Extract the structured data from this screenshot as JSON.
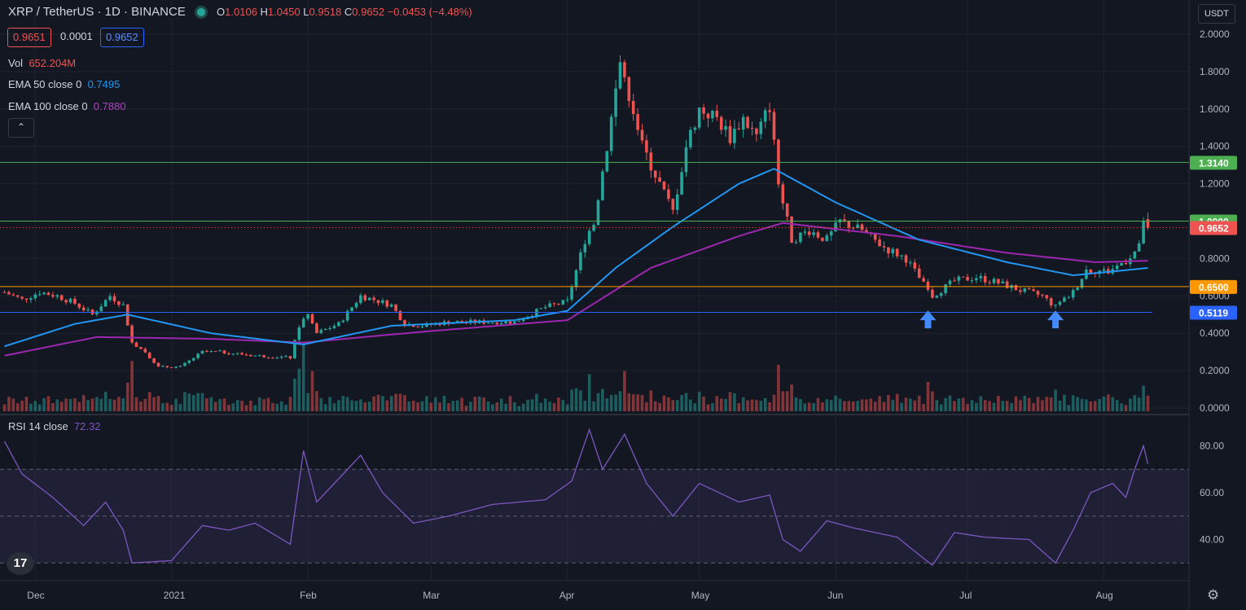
{
  "header": {
    "symbol": "XRP / TetherUS · 1D · BINANCE",
    "open": "1.0106",
    "high": "1.0450",
    "low": "0.9518",
    "close": "0.9652",
    "change": "−0.0453 (−4.48%)"
  },
  "price_boxes": {
    "bid": "0.9651",
    "spread": "0.0001",
    "ask": "0.9652"
  },
  "indicators": {
    "vol_label": "Vol",
    "vol_value": "652.204M",
    "ema50_label": "EMA 50 close 0",
    "ema50_value": "0.7495",
    "ema100_label": "EMA 100 close 0",
    "ema100_value": "0.7880",
    "rsi_label": "RSI 14 close",
    "rsi_value": "72.32"
  },
  "currency_button": "USDT",
  "logo_text": "17",
  "icons": {
    "collapse": "chevron-up-icon",
    "settings": "gear-icon",
    "arrows": "arrow-up-icon"
  },
  "colors": {
    "up": "#26a69a",
    "down": "#ef5350",
    "ema50": "#2196f3",
    "ema100": "#9c27b0",
    "rsi": "#7e57c2",
    "level_green": "#4caf50",
    "level_orange": "#ff9800",
    "level_blue": "#2962ff"
  },
  "chart_data": [
    {
      "type": "candlestick",
      "title": "XRP / TetherUS 1D BINANCE",
      "yaxis_ticks": [
        "2.0000",
        "1.8000",
        "1.6000",
        "1.4000",
        "1.2000",
        "1.0000",
        "0.8000",
        "0.6000",
        "0.4000",
        "0.2000",
        "0.0000"
      ],
      "ylim": [
        0,
        2.05
      ],
      "xaxis_ticks": [
        {
          "label": "Dec",
          "date": "2020-12-01"
        },
        {
          "label": "2021",
          "date": "2021-01-01"
        },
        {
          "label": "Feb",
          "date": "2021-02-01"
        },
        {
          "label": "Mar",
          "date": "2021-03-01"
        },
        {
          "label": "Apr",
          "date": "2021-04-01"
        },
        {
          "label": "May",
          "date": "2021-05-01"
        },
        {
          "label": "Jun",
          "date": "2021-06-01"
        },
        {
          "label": "Jul",
          "date": "2021-07-01"
        },
        {
          "label": "Aug",
          "date": "2021-08-01"
        }
      ],
      "close_anchors": [
        [
          "2020-11-24",
          0.62
        ],
        [
          "2020-11-28",
          0.58
        ],
        [
          "2020-12-02",
          0.62
        ],
        [
          "2020-12-06",
          0.6
        ],
        [
          "2020-12-10",
          0.56
        ],
        [
          "2020-12-14",
          0.5
        ],
        [
          "2020-12-18",
          0.6
        ],
        [
          "2020-12-21",
          0.55
        ],
        [
          "2020-12-23",
          0.35
        ],
        [
          "2020-12-26",
          0.3
        ],
        [
          "2020-12-29",
          0.22
        ],
        [
          "2021-01-03",
          0.22
        ],
        [
          "2021-01-08",
          0.3
        ],
        [
          "2021-01-12",
          0.3
        ],
        [
          "2021-01-20",
          0.28
        ],
        [
          "2021-01-28",
          0.27
        ],
        [
          "2021-01-30",
          0.44
        ],
        [
          "2021-02-01",
          0.5
        ],
        [
          "2021-02-03",
          0.4
        ],
        [
          "2021-02-08",
          0.45
        ],
        [
          "2021-02-13",
          0.6
        ],
        [
          "2021-02-16",
          0.58
        ],
        [
          "2021-02-20",
          0.55
        ],
        [
          "2021-02-23",
          0.45
        ],
        [
          "2021-02-27",
          0.44
        ],
        [
          "2021-03-05",
          0.46
        ],
        [
          "2021-03-12",
          0.46
        ],
        [
          "2021-03-20",
          0.46
        ],
        [
          "2021-03-27",
          0.54
        ],
        [
          "2021-04-01",
          0.57
        ],
        [
          "2021-04-05",
          0.9
        ],
        [
          "2021-04-07",
          1.0
        ],
        [
          "2021-04-10",
          1.4
        ],
        [
          "2021-04-13",
          1.85
        ],
        [
          "2021-04-16",
          1.6
        ],
        [
          "2021-04-18",
          1.4
        ],
        [
          "2021-04-22",
          1.2
        ],
        [
          "2021-04-25",
          1.05
        ],
        [
          "2021-04-28",
          1.4
        ],
        [
          "2021-05-01",
          1.6
        ],
        [
          "2021-05-05",
          1.55
        ],
        [
          "2021-05-08",
          1.45
        ],
        [
          "2021-05-11",
          1.55
        ],
        [
          "2021-05-14",
          1.45
        ],
        [
          "2021-05-17",
          1.62
        ],
        [
          "2021-05-19",
          1.2
        ],
        [
          "2021-05-22",
          0.9
        ],
        [
          "2021-05-26",
          0.95
        ],
        [
          "2021-05-30",
          0.9
        ],
        [
          "2021-06-02",
          1.0
        ],
        [
          "2021-06-07",
          0.95
        ],
        [
          "2021-06-12",
          0.86
        ],
        [
          "2021-06-17",
          0.8
        ],
        [
          "2021-06-21",
          0.66
        ],
        [
          "2021-06-23",
          0.6
        ],
        [
          "2021-06-28",
          0.68
        ],
        [
          "2021-07-03",
          0.7
        ],
        [
          "2021-07-08",
          0.67
        ],
        [
          "2021-07-13",
          0.63
        ],
        [
          "2021-07-18",
          0.6
        ],
        [
          "2021-07-21",
          0.54
        ],
        [
          "2021-07-25",
          0.62
        ],
        [
          "2021-07-28",
          0.74
        ],
        [
          "2021-08-02",
          0.73
        ],
        [
          "2021-08-06",
          0.79
        ],
        [
          "2021-08-09",
          0.86
        ],
        [
          "2021-08-10",
          1.01
        ],
        [
          "2021-08-11",
          0.9652
        ]
      ],
      "ema50_anchors": [
        [
          "2020-11-24",
          0.33
        ],
        [
          "2020-12-10",
          0.45
        ],
        [
          "2020-12-22",
          0.5
        ],
        [
          "2021-01-10",
          0.4
        ],
        [
          "2021-01-31",
          0.34
        ],
        [
          "2021-02-20",
          0.44
        ],
        [
          "2021-03-20",
          0.47
        ],
        [
          "2021-04-01",
          0.52
        ],
        [
          "2021-04-12",
          0.75
        ],
        [
          "2021-04-25",
          0.97
        ],
        [
          "2021-05-10",
          1.2
        ],
        [
          "2021-05-18",
          1.28
        ],
        [
          "2021-06-01",
          1.1
        ],
        [
          "2021-06-20",
          0.9
        ],
        [
          "2021-07-10",
          0.78
        ],
        [
          "2021-07-25",
          0.71
        ],
        [
          "2021-08-11",
          0.7495
        ]
      ],
      "ema100_anchors": [
        [
          "2020-11-24",
          0.28
        ],
        [
          "2020-12-15",
          0.38
        ],
        [
          "2021-01-10",
          0.37
        ],
        [
          "2021-01-31",
          0.35
        ],
        [
          "2021-02-28",
          0.41
        ],
        [
          "2021-04-01",
          0.47
        ],
        [
          "2021-04-20",
          0.75
        ],
        [
          "2021-05-10",
          0.92
        ],
        [
          "2021-05-20",
          0.99
        ],
        [
          "2021-06-15",
          0.92
        ],
        [
          "2021-07-10",
          0.83
        ],
        [
          "2021-07-30",
          0.78
        ],
        [
          "2021-08-11",
          0.788
        ]
      ],
      "volume": {
        "ylim": [
          0,
          1000
        ],
        "spikes": [
          [
            "2020-12-23",
            650
          ],
          [
            "2021-01-30",
            550
          ],
          [
            "2021-01-31",
            900
          ],
          [
            "2021-02-02",
            520
          ],
          [
            "2021-04-06",
            480
          ],
          [
            "2021-04-14",
            520
          ],
          [
            "2021-05-19",
            600
          ],
          [
            "2021-06-22",
            380
          ],
          [
            "2021-07-21",
            280
          ],
          [
            "2021-08-10",
            330
          ]
        ]
      },
      "levels": [
        {
          "value": 1.314,
          "label": "1.3140",
          "color": "#4caf50"
        },
        {
          "value": 1.0,
          "label": "1.0000",
          "color": "#4caf50"
        },
        {
          "value": 0.9652,
          "label": "0.9652",
          "color": "#ef5350",
          "dotted": true
        },
        {
          "value": 0.65,
          "label": "0.6500",
          "color": "#ff9800"
        },
        {
          "value": 0.5119,
          "label": "0.5119",
          "color": "#2962ff"
        }
      ],
      "annotations": [
        {
          "type": "arrow-up",
          "date": "2021-06-22",
          "value": 0.47
        },
        {
          "type": "arrow-up",
          "date": "2021-07-21",
          "value": 0.47
        }
      ]
    },
    {
      "type": "line",
      "title": "RSI 14 close",
      "ylim": [
        25,
        90
      ],
      "yaxis_ticks": [
        "80.00",
        "60.00",
        "40.00"
      ],
      "bands": [
        30,
        50,
        70
      ],
      "anchors": [
        [
          "2020-11-24",
          82
        ],
        [
          "2020-11-28",
          68
        ],
        [
          "2020-12-05",
          58
        ],
        [
          "2020-12-12",
          46
        ],
        [
          "2020-12-17",
          56
        ],
        [
          "2020-12-21",
          44
        ],
        [
          "2020-12-23",
          30
        ],
        [
          "2021-01-01",
          31
        ],
        [
          "2021-01-08",
          46
        ],
        [
          "2021-01-14",
          44
        ],
        [
          "2021-01-20",
          47
        ],
        [
          "2021-01-28",
          38
        ],
        [
          "2021-01-31",
          78
        ],
        [
          "2021-02-03",
          56
        ],
        [
          "2021-02-13",
          76
        ],
        [
          "2021-02-18",
          60
        ],
        [
          "2021-02-25",
          47
        ],
        [
          "2021-03-05",
          50
        ],
        [
          "2021-03-15",
          55
        ],
        [
          "2021-03-27",
          57
        ],
        [
          "2021-04-02",
          65
        ],
        [
          "2021-04-06",
          87
        ],
        [
          "2021-04-09",
          70
        ],
        [
          "2021-04-14",
          85
        ],
        [
          "2021-04-19",
          64
        ],
        [
          "2021-04-25",
          50
        ],
        [
          "2021-05-01",
          64
        ],
        [
          "2021-05-10",
          56
        ],
        [
          "2021-05-17",
          59
        ],
        [
          "2021-05-20",
          40
        ],
        [
          "2021-05-24",
          35
        ],
        [
          "2021-05-30",
          48
        ],
        [
          "2021-06-05",
          45
        ],
        [
          "2021-06-15",
          41
        ],
        [
          "2021-06-23",
          29
        ],
        [
          "2021-06-28",
          43
        ],
        [
          "2021-07-05",
          41
        ],
        [
          "2021-07-15",
          40
        ],
        [
          "2021-07-21",
          30
        ],
        [
          "2021-07-25",
          44
        ],
        [
          "2021-07-29",
          60
        ],
        [
          "2021-08-03",
          64
        ],
        [
          "2021-08-06",
          58
        ],
        [
          "2021-08-08",
          70
        ],
        [
          "2021-08-10",
          80
        ],
        [
          "2021-08-11",
          72.32
        ]
      ]
    }
  ]
}
